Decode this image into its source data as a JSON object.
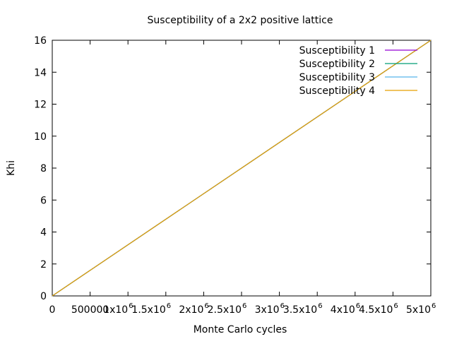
{
  "chart_data": {
    "type": "line",
    "title": "Susceptibility of a 2x2 positive lattice",
    "xlabel": "Monte Carlo cycles",
    "ylabel": "Khi",
    "xlim": [
      0,
      5000000
    ],
    "ylim": [
      0,
      16
    ],
    "x_ticks": [
      {
        "value": 0,
        "label": "0",
        "exp": ""
      },
      {
        "value": 500000,
        "label": "500000",
        "exp": ""
      },
      {
        "value": 1000000,
        "label": "1x10",
        "exp": "6"
      },
      {
        "value": 1500000,
        "label": "1.5x10",
        "exp": "6"
      },
      {
        "value": 2000000,
        "label": "2x10",
        "exp": "6"
      },
      {
        "value": 2500000,
        "label": "2.5x10",
        "exp": "6"
      },
      {
        "value": 3000000,
        "label": "3x10",
        "exp": "6"
      },
      {
        "value": 3500000,
        "label": "3.5x10",
        "exp": "6"
      },
      {
        "value": 4000000,
        "label": "4x10",
        "exp": "6"
      },
      {
        "value": 4500000,
        "label": "4.5x10",
        "exp": "6"
      },
      {
        "value": 5000000,
        "label": "5x10",
        "exp": "6"
      }
    ],
    "y_ticks": [
      {
        "value": 0,
        "label": "0"
      },
      {
        "value": 2,
        "label": "2"
      },
      {
        "value": 4,
        "label": "4"
      },
      {
        "value": 6,
        "label": "6"
      },
      {
        "value": 8,
        "label": "8"
      },
      {
        "value": 10,
        "label": "10"
      },
      {
        "value": 12,
        "label": "12"
      },
      {
        "value": 14,
        "label": "14"
      },
      {
        "value": 16,
        "label": "16"
      }
    ],
    "grid": false,
    "legend_position": "top-right",
    "series": [
      {
        "name": "Susceptibility 1",
        "color": "#9400d3",
        "x": [
          0,
          5000000
        ],
        "y": [
          0,
          16
        ]
      },
      {
        "name": "Susceptibility 2",
        "color": "#009e73",
        "x": [
          0,
          5000000
        ],
        "y": [
          0,
          16
        ]
      },
      {
        "name": "Susceptibility 3",
        "color": "#56b4e9",
        "x": [
          0,
          5000000
        ],
        "y": [
          0,
          16
        ]
      },
      {
        "name": "Susceptibility 4",
        "color": "#e69f00",
        "x": [
          0,
          5000000
        ],
        "y": [
          0,
          16
        ]
      }
    ]
  }
}
